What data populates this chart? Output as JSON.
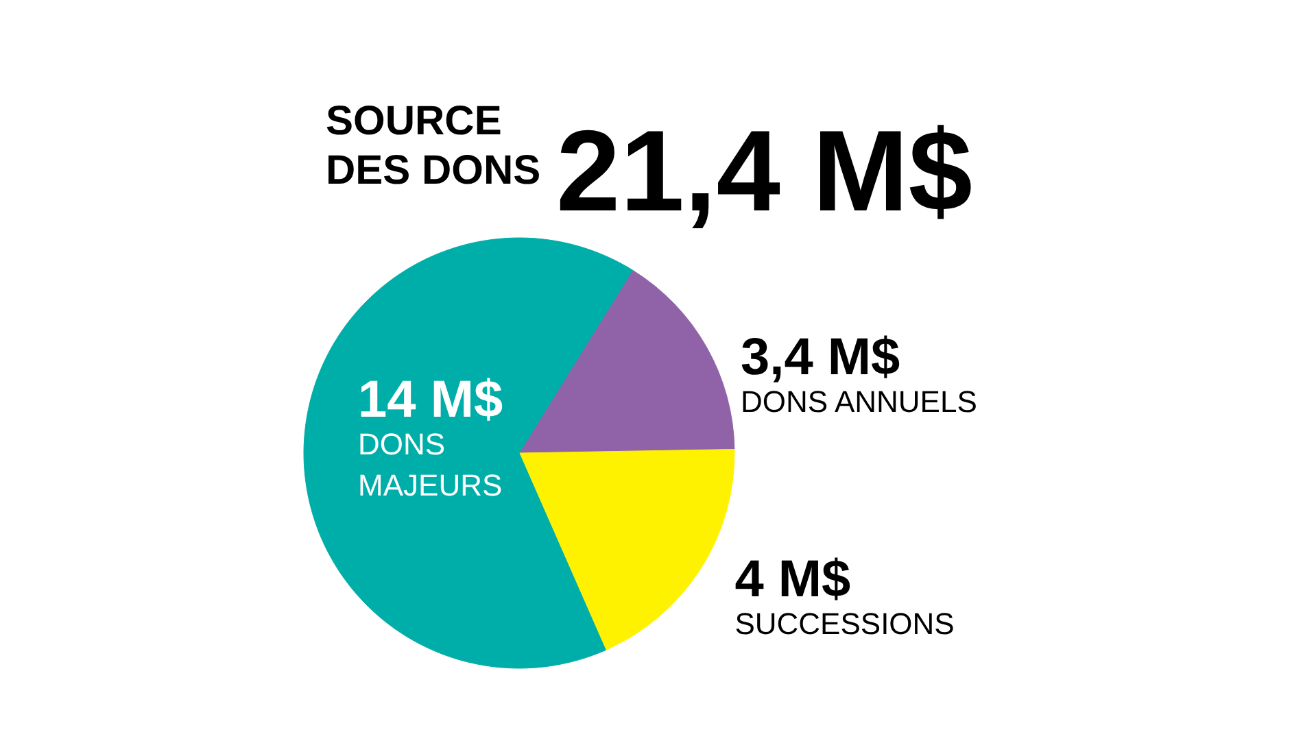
{
  "chart_data": {
    "type": "pie",
    "title": "SOURCE DES DONS",
    "subtitle": "21,4 M$",
    "categories": [
      "DONS ANNUELS",
      "SUCCESSIONS",
      "DONS MAJEURS"
    ],
    "values": [
      3.4,
      4,
      14
    ],
    "colors": [
      "#9063a8",
      "#fff200",
      "#00aea9"
    ],
    "value_labels": [
      "3,4 M$",
      "4 M$",
      "14 M$"
    ]
  }
}
